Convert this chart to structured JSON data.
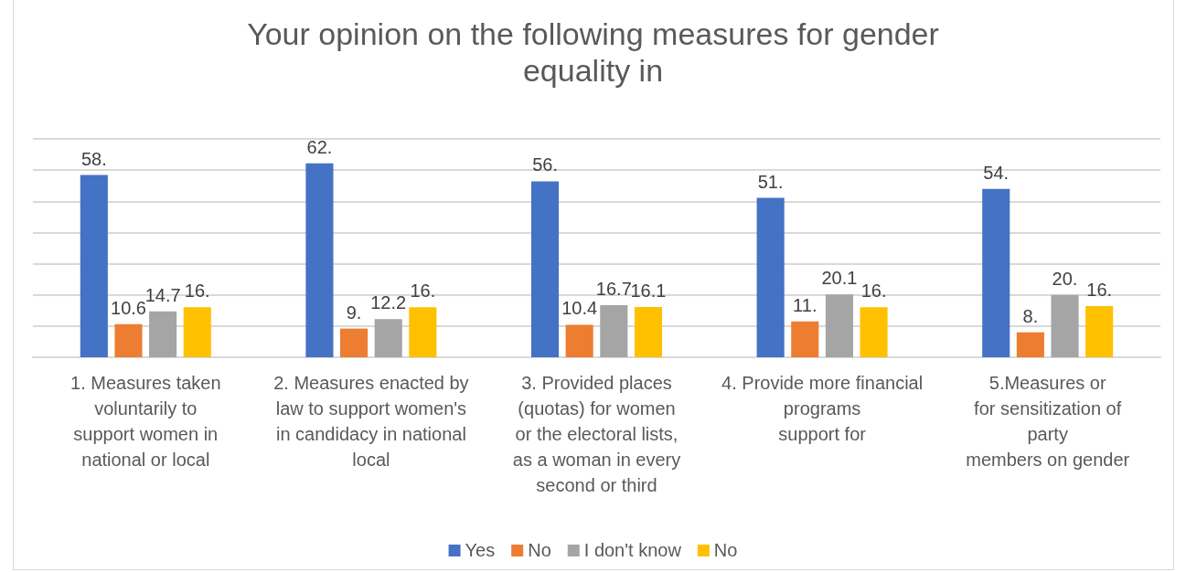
{
  "chart_data": {
    "type": "bar",
    "title": "Your opinion on the following measures for gender\nequality in",
    "categories": [
      "1. Measures taken\nvoluntarily to\nsupport women in\nnational or local",
      "2. Measures enacted by\nlaw to support women's\nin candidacy in national\nlocal",
      "3. Provided places\n(quotas) for women\nor the electoral lists,\nas a woman in every\nsecond or third",
      "4. Provide more financial\nprograms\nsupport for",
      "5.Measures or\nfor sensitization of\nparty\nmembers on gender"
    ],
    "series": [
      {
        "name": "Yes",
        "color": "#4472c4",
        "values": [
          58.4,
          62.2,
          56.4,
          51.1,
          54.0
        ],
        "value_labels": [
          "58.",
          "62.",
          "56.",
          "51.",
          "54."
        ]
      },
      {
        "name": "No",
        "color": "#ed7d31",
        "values": [
          10.6,
          9.2,
          10.4,
          11.5,
          8.0
        ],
        "value_labels": [
          "10.6",
          "9.",
          "10.4",
          "11.",
          "8."
        ]
      },
      {
        "name": "I don't know",
        "color": "#a5a5a5",
        "values": [
          14.7,
          12.2,
          16.7,
          20.1,
          20.0
        ],
        "value_labels": [
          "14.7",
          "12.2",
          "16.7",
          "20.1",
          "20."
        ]
      },
      {
        "name": "No",
        "color": "#ffc000",
        "values": [
          16.0,
          16.0,
          16.1,
          16.0,
          16.4
        ],
        "value_labels": [
          "16.",
          "16.",
          "16.1",
          "16.",
          "16."
        ]
      }
    ],
    "ylim": [
      0,
      70
    ],
    "yticks": [
      {
        "value": 0,
        "label": null
      },
      {
        "value": 10,
        "label": null
      },
      {
        "value": 20,
        "label": null
      },
      {
        "value": 30,
        "label": null
      },
      {
        "value": 40,
        "label": null
      },
      {
        "value": 50,
        "label": null
      },
      {
        "value": 60,
        "label": null
      },
      {
        "value": 70,
        "label": null
      }
    ],
    "grid": "y",
    "legend": "bottom",
    "tick_labels": "x"
  }
}
